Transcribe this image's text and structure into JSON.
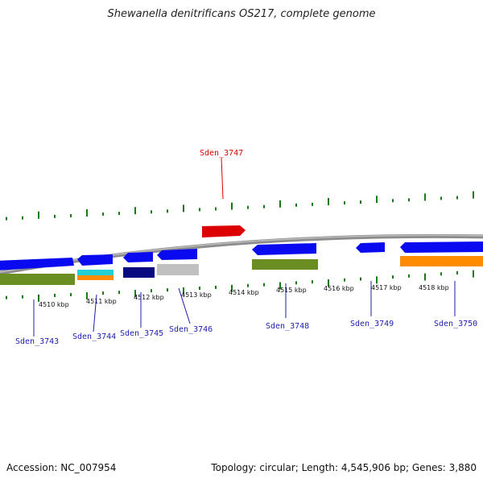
{
  "title": "Shewanella denitrificans OS217, complete genome",
  "footer": {
    "accession": "Accession: NC_007954",
    "topology": "Topology: circular; Length: 4,545,906 bp; Genes: 3,880"
  },
  "colors": {
    "backbone": "#8c8c8c",
    "tick": "#1a7a1a",
    "highlight": "#dd0000",
    "label": "#1c1cb0",
    "gene_blue": "#0a0af0",
    "gene_green": "#6b8e23",
    "gene_cyan": "#22cfd6",
    "gene_orange": "#ff8c00",
    "gene_navy": "#0a0a80",
    "gene_gray": "#c0c0c0"
  },
  "scale_labels": [
    "4510 kbp",
    "4511 kbp",
    "4512 kbp",
    "4513 kbp",
    "4514 kbp",
    "4515 kbp",
    "4516 kbp",
    "4517 kbp",
    "4518 kbp"
  ],
  "genes": [
    {
      "name": "Sden_3743",
      "color": "highlight_none"
    },
    {
      "name": "Sden_3744"
    },
    {
      "name": "Sden_3745"
    },
    {
      "name": "Sden_3746"
    },
    {
      "name": "Sden_3747",
      "highlighted": true
    },
    {
      "name": "Sden_3748"
    },
    {
      "name": "Sden_3749"
    },
    {
      "name": "Sden_3750"
    }
  ]
}
